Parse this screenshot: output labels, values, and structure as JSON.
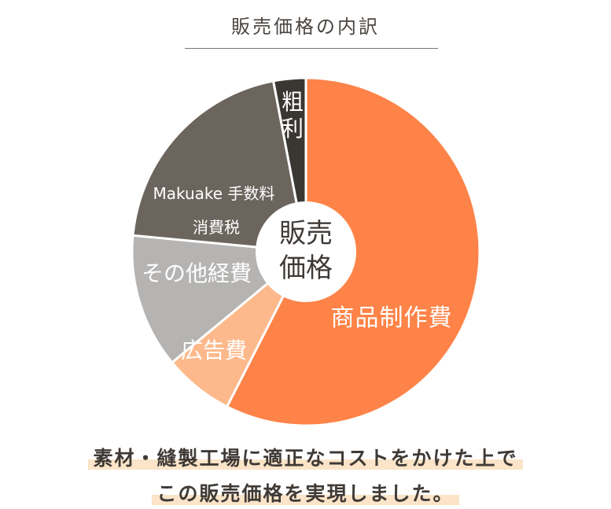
{
  "header": {
    "title": "販売価格の内訳"
  },
  "chart_data": {
    "type": "pie",
    "title": "販売価格の内訳",
    "center_label": [
      "販売",
      "価格"
    ],
    "slices": [
      {
        "label": "商品制作費",
        "value": 57.5,
        "color": "#fe8348"
      },
      {
        "label": "広告費",
        "value": 6.5,
        "color": "#fdb98b"
      },
      {
        "label": "その他経費",
        "value": 12.5,
        "color": "#b5b4b3"
      },
      {
        "label": "Makuake 手数料\n消費税",
        "value": 20.5,
        "color": "#6c655e"
      },
      {
        "label": "粗利",
        "value": 3.0,
        "color": "#3a3733"
      }
    ]
  },
  "caption": {
    "line1": "素材・縫製工場に適正なコストをかけた上で",
    "line2": "この販売価格を実現しました。"
  }
}
